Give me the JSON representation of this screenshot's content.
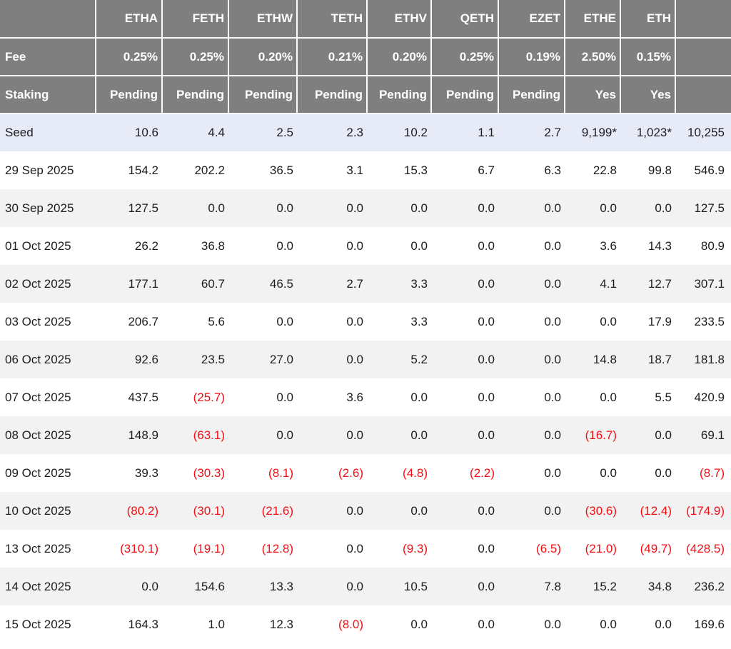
{
  "colors": {
    "header_bg": "#7f7f7f",
    "header_text": "#ffffff",
    "seed_row_bg": "#e7ebf8",
    "alt_row_bg": "#f2f2f2",
    "text": "#1d1d1f",
    "negative": "#f60d12"
  },
  "chart_data": {
    "type": "table",
    "title": "Ethereum ETF daily flow table",
    "columns": [
      "",
      "ETHA",
      "FETH",
      "ETHW",
      "TETH",
      "ETHV",
      "QETH",
      "EZET",
      "ETHE",
      "ETH",
      ""
    ],
    "fee_row": {
      "label": "Fee",
      "values": [
        "0.25%",
        "0.25%",
        "0.20%",
        "0.21%",
        "0.20%",
        "0.25%",
        "0.19%",
        "2.50%",
        "0.15%",
        ""
      ]
    },
    "staking_row": {
      "label": "Staking",
      "values": [
        "Pending",
        "Pending",
        "Pending",
        "Pending",
        "Pending",
        "Pending",
        "Pending",
        "Yes",
        "Yes",
        ""
      ]
    },
    "data_rows": [
      {
        "label": "Seed",
        "values": [
          "10.6",
          "4.4",
          "2.5",
          "2.3",
          "10.2",
          "1.1",
          "2.7",
          "9,199*",
          "1,023*",
          "10,255"
        ]
      },
      {
        "label": "29 Sep 2025",
        "values": [
          "154.2",
          "202.2",
          "36.5",
          "3.1",
          "15.3",
          "6.7",
          "6.3",
          "22.8",
          "99.8",
          "546.9"
        ]
      },
      {
        "label": "30 Sep 2025",
        "values": [
          "127.5",
          "0.0",
          "0.0",
          "0.0",
          "0.0",
          "0.0",
          "0.0",
          "0.0",
          "0.0",
          "127.5"
        ]
      },
      {
        "label": "01 Oct 2025",
        "values": [
          "26.2",
          "36.8",
          "0.0",
          "0.0",
          "0.0",
          "0.0",
          "0.0",
          "3.6",
          "14.3",
          "80.9"
        ]
      },
      {
        "label": "02 Oct 2025",
        "values": [
          "177.1",
          "60.7",
          "46.5",
          "2.7",
          "3.3",
          "0.0",
          "0.0",
          "4.1",
          "12.7",
          "307.1"
        ]
      },
      {
        "label": "03 Oct 2025",
        "values": [
          "206.7",
          "5.6",
          "0.0",
          "0.0",
          "3.3",
          "0.0",
          "0.0",
          "0.0",
          "17.9",
          "233.5"
        ]
      },
      {
        "label": "06 Oct 2025",
        "values": [
          "92.6",
          "23.5",
          "27.0",
          "0.0",
          "5.2",
          "0.0",
          "0.0",
          "14.8",
          "18.7",
          "181.8"
        ]
      },
      {
        "label": "07 Oct 2025",
        "values": [
          "437.5",
          "(25.7)",
          "0.0",
          "3.6",
          "0.0",
          "0.0",
          "0.0",
          "0.0",
          "5.5",
          "420.9"
        ]
      },
      {
        "label": "08 Oct 2025",
        "values": [
          "148.9",
          "(63.1)",
          "0.0",
          "0.0",
          "0.0",
          "0.0",
          "0.0",
          "(16.7)",
          "0.0",
          "69.1"
        ]
      },
      {
        "label": "09 Oct 2025",
        "values": [
          "39.3",
          "(30.3)",
          "(8.1)",
          "(2.6)",
          "(4.8)",
          "(2.2)",
          "0.0",
          "0.0",
          "0.0",
          "(8.7)"
        ]
      },
      {
        "label": "10 Oct 2025",
        "values": [
          "(80.2)",
          "(30.1)",
          "(21.6)",
          "0.0",
          "0.0",
          "0.0",
          "0.0",
          "(30.6)",
          "(12.4)",
          "(174.9)"
        ]
      },
      {
        "label": "13 Oct 2025",
        "values": [
          "(310.1)",
          "(19.1)",
          "(12.8)",
          "0.0",
          "(9.3)",
          "0.0",
          "(6.5)",
          "(21.0)",
          "(49.7)",
          "(428.5)"
        ]
      },
      {
        "label": "14 Oct 2025",
        "values": [
          "0.0",
          "154.6",
          "13.3",
          "0.0",
          "10.5",
          "0.0",
          "7.8",
          "15.2",
          "34.8",
          "236.2"
        ]
      },
      {
        "label": "15 Oct 2025",
        "values": [
          "164.3",
          "1.0",
          "12.3",
          "(8.0)",
          "0.0",
          "0.0",
          "0.0",
          "0.0",
          "0.0",
          "169.6"
        ]
      }
    ]
  }
}
